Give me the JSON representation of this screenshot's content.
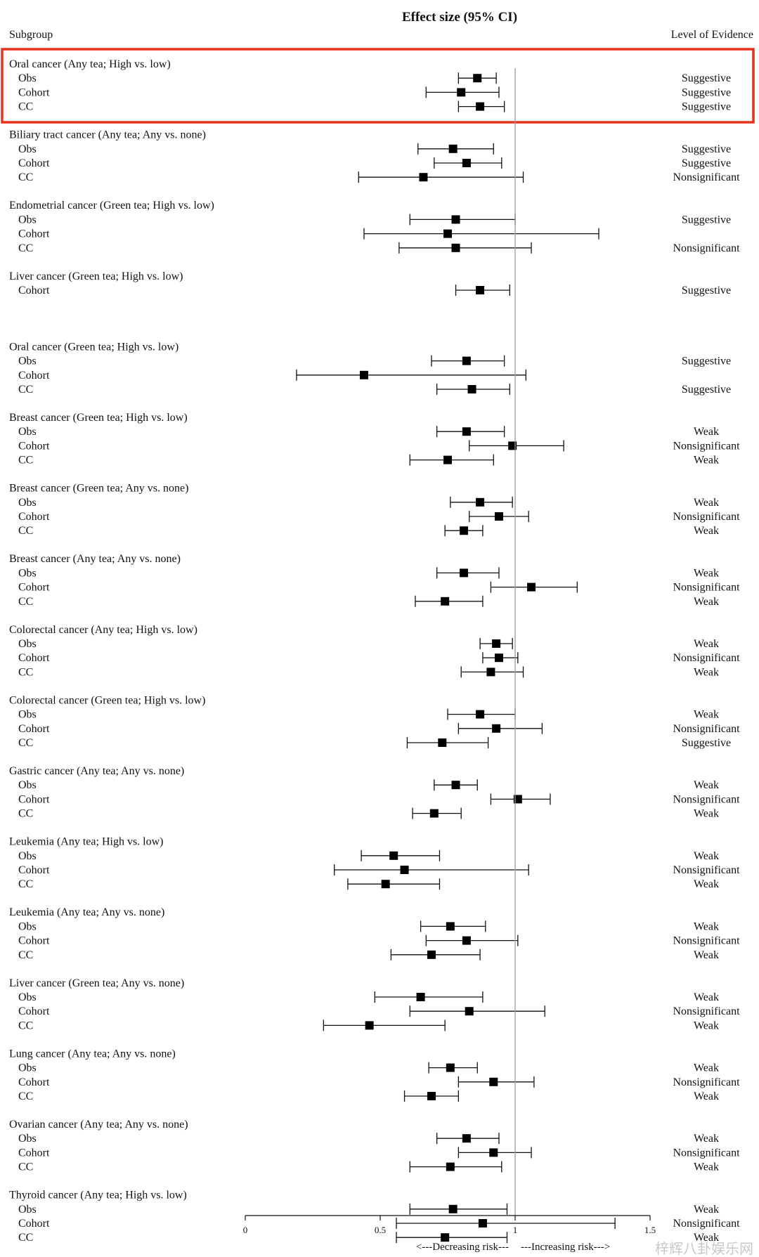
{
  "chart_data": {
    "type": "forest",
    "title": "Effect size (95% CI)",
    "subgroup_header": "Subgroup",
    "evidence_header": "Level of Evidence",
    "x_ticks": [
      "0",
      "0.5",
      "1",
      "1.5"
    ],
    "xlim": [
      0,
      1.5
    ],
    "reference_line": 1,
    "direction_left": "<---Decreasing risk---",
    "direction_right": "---Increasing risk--->",
    "highlighted_group_index": 0,
    "highlight_color": "#e8321e",
    "groups": [
      {
        "label": "Oral cancer (Any tea; High vs. low)",
        "rows": [
          {
            "name": "Obs",
            "est": 0.86,
            "lo": 0.79,
            "hi": 0.93,
            "evidence": "Suggestive"
          },
          {
            "name": "Cohort",
            "est": 0.8,
            "lo": 0.67,
            "hi": 0.94,
            "evidence": "Suggestive"
          },
          {
            "name": "CC",
            "est": 0.87,
            "lo": 0.79,
            "hi": 0.96,
            "evidence": "Suggestive"
          }
        ]
      },
      {
        "label": "Biliary tract cancer (Any tea; Any vs. none)",
        "rows": [
          {
            "name": "Obs",
            "est": 0.77,
            "lo": 0.64,
            "hi": 0.92,
            "evidence": "Suggestive"
          },
          {
            "name": "Cohort",
            "est": 0.82,
            "lo": 0.7,
            "hi": 0.95,
            "evidence": "Suggestive"
          },
          {
            "name": "CC",
            "est": 0.66,
            "lo": 0.42,
            "hi": 1.03,
            "evidence": "Nonsignificant"
          }
        ]
      },
      {
        "label": "Endometrial cancer (Green tea; High vs. low)",
        "rows": [
          {
            "name": "Obs",
            "est": 0.78,
            "lo": 0.61,
            "hi": 1.0,
            "evidence": "Suggestive"
          },
          {
            "name": "Cohort",
            "est": 0.75,
            "lo": 0.44,
            "hi": 1.31,
            "evidence": ""
          },
          {
            "name": "CC",
            "est": 0.78,
            "lo": 0.57,
            "hi": 1.06,
            "evidence": "Nonsignificant"
          }
        ]
      },
      {
        "label": "Liver cancer (Green tea; High vs. low)",
        "rows": [
          {
            "name": "Cohort",
            "est": 0.87,
            "lo": 0.78,
            "hi": 0.98,
            "evidence": "Suggestive"
          }
        ]
      },
      {
        "label": "Oral cancer (Green tea; High vs. low)",
        "rows": [
          {
            "name": "Obs",
            "est": 0.82,
            "lo": 0.69,
            "hi": 0.96,
            "evidence": "Suggestive"
          },
          {
            "name": "Cohort",
            "est": 0.44,
            "lo": 0.19,
            "hi": 1.04,
            "evidence": ""
          },
          {
            "name": "CC",
            "est": 0.84,
            "lo": 0.71,
            "hi": 0.98,
            "evidence": "Suggestive"
          }
        ]
      },
      {
        "label": "Breast cancer (Green tea; High vs. low)",
        "rows": [
          {
            "name": "Obs",
            "est": 0.82,
            "lo": 0.71,
            "hi": 0.96,
            "evidence": "Weak"
          },
          {
            "name": "Cohort",
            "est": 0.99,
            "lo": 0.83,
            "hi": 1.18,
            "evidence": "Nonsignificant"
          },
          {
            "name": "CC",
            "est": 0.75,
            "lo": 0.61,
            "hi": 0.92,
            "evidence": "Weak"
          }
        ]
      },
      {
        "label": "Breast cancer (Green tea; Any vs. none)",
        "rows": [
          {
            "name": "Obs",
            "est": 0.87,
            "lo": 0.76,
            "hi": 0.99,
            "evidence": "Weak"
          },
          {
            "name": "Cohort",
            "est": 0.94,
            "lo": 0.83,
            "hi": 1.05,
            "evidence": "Nonsignificant"
          },
          {
            "name": "CC",
            "est": 0.81,
            "lo": 0.74,
            "hi": 0.88,
            "evidence": "Weak"
          }
        ]
      },
      {
        "label": "Breast cancer (Any tea; Any vs. none)",
        "rows": [
          {
            "name": "Obs",
            "est": 0.81,
            "lo": 0.71,
            "hi": 0.94,
            "evidence": "Weak"
          },
          {
            "name": "Cohort",
            "est": 1.06,
            "lo": 0.91,
            "hi": 1.23,
            "evidence": "Nonsignificant"
          },
          {
            "name": "CC",
            "est": 0.74,
            "lo": 0.63,
            "hi": 0.88,
            "evidence": "Weak"
          }
        ]
      },
      {
        "label": "Colorectal cancer (Any tea; High vs. low)",
        "rows": [
          {
            "name": "Obs",
            "est": 0.93,
            "lo": 0.87,
            "hi": 0.99,
            "evidence": "Weak"
          },
          {
            "name": "Cohort",
            "est": 0.94,
            "lo": 0.88,
            "hi": 1.01,
            "evidence": "Nonsignificant"
          },
          {
            "name": "CC",
            "est": 0.91,
            "lo": 0.8,
            "hi": 1.03,
            "evidence": "Weak"
          }
        ]
      },
      {
        "label": "Colorectal cancer (Green tea; High vs. low)",
        "rows": [
          {
            "name": "Obs",
            "est": 0.87,
            "lo": 0.75,
            "hi": 1.0,
            "evidence": "Weak"
          },
          {
            "name": "Cohort",
            "est": 0.93,
            "lo": 0.79,
            "hi": 1.1,
            "evidence": "Nonsignificant"
          },
          {
            "name": "CC",
            "est": 0.73,
            "lo": 0.6,
            "hi": 0.9,
            "evidence": "Suggestive"
          }
        ]
      },
      {
        "label": "Gastric cancer (Any tea; Any vs. none)",
        "rows": [
          {
            "name": "Obs",
            "est": 0.78,
            "lo": 0.7,
            "hi": 0.86,
            "evidence": "Weak"
          },
          {
            "name": "Cohort",
            "est": 1.01,
            "lo": 0.91,
            "hi": 1.13,
            "evidence": "Nonsignificant"
          },
          {
            "name": "CC",
            "est": 0.7,
            "lo": 0.62,
            "hi": 0.8,
            "evidence": "Weak"
          }
        ]
      },
      {
        "label": "Leukemia (Any tea; High vs. low)",
        "rows": [
          {
            "name": "Obs",
            "est": 0.55,
            "lo": 0.43,
            "hi": 0.72,
            "evidence": "Weak"
          },
          {
            "name": "Cohort",
            "est": 0.59,
            "lo": 0.33,
            "hi": 1.05,
            "evidence": "Nonsignificant"
          },
          {
            "name": "CC",
            "est": 0.52,
            "lo": 0.38,
            "hi": 0.72,
            "evidence": "Weak"
          }
        ]
      },
      {
        "label": "Leukemia (Any tea; Any vs. none)",
        "rows": [
          {
            "name": "Obs",
            "est": 0.76,
            "lo": 0.65,
            "hi": 0.89,
            "evidence": "Weak"
          },
          {
            "name": "Cohort",
            "est": 0.82,
            "lo": 0.67,
            "hi": 1.01,
            "evidence": "Nonsignificant"
          },
          {
            "name": "CC",
            "est": 0.69,
            "lo": 0.54,
            "hi": 0.87,
            "evidence": "Weak"
          }
        ]
      },
      {
        "label": "Liver cancer (Green tea; Any vs. none)",
        "rows": [
          {
            "name": "Obs",
            "est": 0.65,
            "lo": 0.48,
            "hi": 0.88,
            "evidence": "Weak"
          },
          {
            "name": "Cohort",
            "est": 0.83,
            "lo": 0.61,
            "hi": 1.11,
            "evidence": "Nonsignificant"
          },
          {
            "name": "CC",
            "est": 0.46,
            "lo": 0.29,
            "hi": 0.74,
            "evidence": "Weak"
          }
        ]
      },
      {
        "label": "Lung cancer (Any tea; Any vs. none)",
        "rows": [
          {
            "name": "Obs",
            "est": 0.76,
            "lo": 0.68,
            "hi": 0.86,
            "evidence": "Weak"
          },
          {
            "name": "Cohort",
            "est": 0.92,
            "lo": 0.79,
            "hi": 1.07,
            "evidence": "Nonsignificant"
          },
          {
            "name": "CC",
            "est": 0.69,
            "lo": 0.59,
            "hi": 0.79,
            "evidence": "Weak"
          }
        ]
      },
      {
        "label": "Ovarian cancer (Any tea; Any vs. none)",
        "rows": [
          {
            "name": "Obs",
            "est": 0.82,
            "lo": 0.71,
            "hi": 0.94,
            "evidence": "Weak"
          },
          {
            "name": "Cohort",
            "est": 0.92,
            "lo": 0.79,
            "hi": 1.06,
            "evidence": "Nonsignificant"
          },
          {
            "name": "CC",
            "est": 0.76,
            "lo": 0.61,
            "hi": 0.95,
            "evidence": "Weak"
          }
        ]
      },
      {
        "label": "Thyroid cancer (Any tea; High vs. low)",
        "rows": [
          {
            "name": "Obs",
            "est": 0.77,
            "lo": 0.61,
            "hi": 0.97,
            "evidence": "Weak"
          },
          {
            "name": "Cohort",
            "est": 0.88,
            "lo": 0.56,
            "hi": 1.37,
            "evidence": "Nonsignificant"
          },
          {
            "name": "CC",
            "est": 0.74,
            "lo": 0.56,
            "hi": 0.97,
            "evidence": "Weak"
          }
        ]
      }
    ]
  },
  "watermark": "梓辉八卦娱乐网"
}
